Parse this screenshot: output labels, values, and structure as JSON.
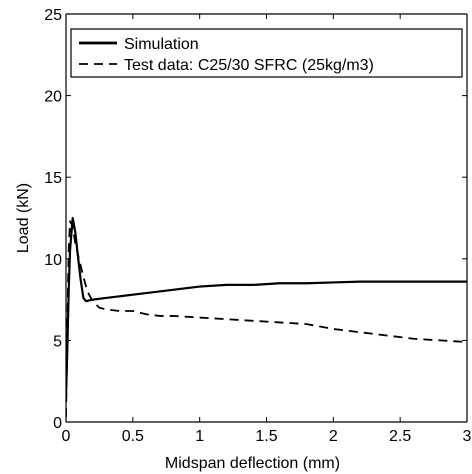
{
  "chart_data": {
    "type": "line",
    "xlabel": "Midspan deflection (mm)",
    "ylabel": "Load (kN)",
    "xlim": [
      0,
      3
    ],
    "ylim": [
      0,
      25
    ],
    "xticks": [
      0,
      0.5,
      1,
      1.5,
      2,
      2.5,
      3
    ],
    "xtick_labels": [
      "0",
      "0.5",
      "1",
      "1.5",
      "2",
      "2.5",
      "3"
    ],
    "yticks": [
      0,
      5,
      10,
      15,
      20,
      25
    ],
    "ytick_labels": [
      "0",
      "5",
      "10",
      "15",
      "20",
      "25"
    ],
    "grid": false,
    "legend_position": "top-left",
    "series": [
      {
        "name": "Simulation",
        "line_style": "solid",
        "color": "#000000",
        "x": [
          0.0,
          0.01,
          0.02,
          0.03,
          0.05,
          0.07,
          0.09,
          0.11,
          0.13,
          0.15,
          0.2,
          0.3,
          0.4,
          0.5,
          0.7,
          0.9,
          1.0,
          1.2,
          1.4,
          1.6,
          1.8,
          2.0,
          2.2,
          2.4,
          2.6,
          2.8,
          3.0
        ],
        "y": [
          1.5,
          4.5,
          8.0,
          10.5,
          12.5,
          11.6,
          10.1,
          8.7,
          7.6,
          7.4,
          7.5,
          7.6,
          7.7,
          7.8,
          8.0,
          8.2,
          8.3,
          8.4,
          8.4,
          8.5,
          8.5,
          8.55,
          8.6,
          8.6,
          8.6,
          8.6,
          8.6
        ]
      },
      {
        "name": "Test data: C25/30 SFRC (25kg/m3)",
        "line_style": "dashed",
        "color": "#000000",
        "x": [
          0.0,
          0.01,
          0.02,
          0.03,
          0.05,
          0.07,
          0.1,
          0.13,
          0.16,
          0.2,
          0.25,
          0.3,
          0.4,
          0.5,
          0.6,
          0.7,
          0.8,
          1.0,
          1.2,
          1.4,
          1.6,
          1.8,
          2.0,
          2.2,
          2.4,
          2.6,
          2.8,
          3.0
        ],
        "y": [
          0.3,
          6.0,
          10.5,
          12.3,
          12.0,
          10.9,
          9.9,
          8.9,
          8.0,
          7.4,
          7.0,
          6.9,
          6.8,
          6.8,
          6.6,
          6.5,
          6.5,
          6.4,
          6.3,
          6.2,
          6.1,
          6.0,
          5.7,
          5.5,
          5.3,
          5.1,
          5.0,
          4.9
        ]
      }
    ]
  }
}
